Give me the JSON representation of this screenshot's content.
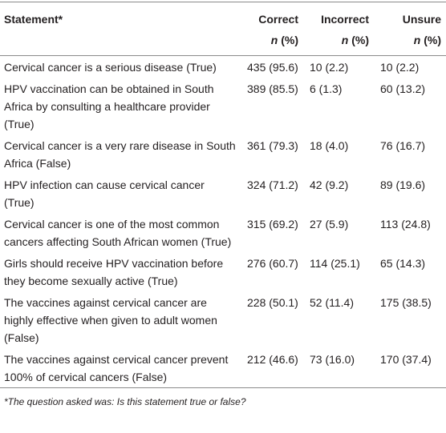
{
  "table": {
    "header": [
      {
        "label": "Statement*"
      },
      {
        "label": "Correct",
        "sub": "n (%)"
      },
      {
        "label": "Incorrect",
        "sub": "n (%)"
      },
      {
        "label": "Unsure",
        "sub": "n (%)"
      }
    ],
    "rows": [
      [
        "Cervical cancer is a serious disease (True)",
        "435 (95.6)",
        "10 (2.2)",
        "10 (2.2)"
      ],
      [
        "HPV vaccination can be obtained in South Africa by consulting a healthcare provider (True)",
        "389 (85.5)",
        "6 (1.3)",
        "60 (13.2)"
      ],
      [
        "Cervical cancer is a very rare disease in South Africa (False)",
        "361 (79.3)",
        "18 (4.0)",
        "76 (16.7)"
      ],
      [
        "HPV infection can cause cervical cancer (True)",
        "324 (71.2)",
        "42 (9.2)",
        "89 (19.6)"
      ],
      [
        "Cervical cancer is one of the most common cancers affecting South African women (True)",
        "315 (69.2)",
        "27 (5.9)",
        "113 (24.8)"
      ],
      [
        "Girls should receive HPV vaccination before they become sexually active (True)",
        "276 (60.7)",
        "114 (25.1)",
        "65 (14.3)"
      ],
      [
        "The vaccines against cervical cancer are highly effective when given to adult women (False)",
        "228 (50.1)",
        "52 (11.4)",
        "175 (38.5)"
      ],
      [
        "The vaccines against cervical cancer prevent 100% of cervical cancers (False)",
        "212 (46.6)",
        "73 (16.0)",
        "170 (37.4)"
      ]
    ],
    "footnote": "*The question asked was: Is this statement true or false?"
  }
}
